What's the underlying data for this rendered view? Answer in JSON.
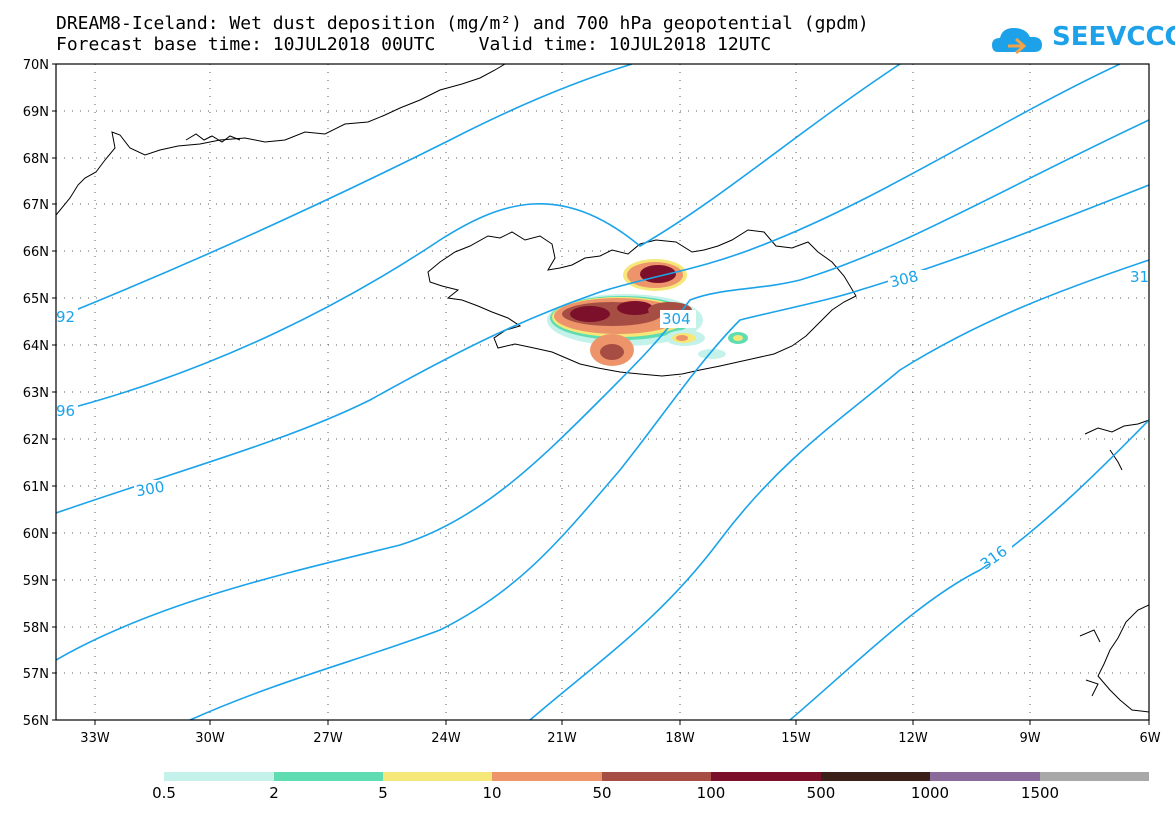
{
  "title": {
    "line1": "DREAM8-Iceland: Wet dust deposition (mg/m²) and 700 hPa geopotential (gpdm)",
    "line2": "Forecast base time: 10JUL2018 00UTC    Valid time: 10JUL2018 12UTC"
  },
  "logo": {
    "text": "SEEVCCC",
    "icon": "cloud-icon",
    "color": "#1da1e8"
  },
  "map": {
    "latitude_labels": [
      "70N",
      "69N",
      "68N",
      "67N",
      "66N",
      "65N",
      "64N",
      "63N",
      "62N",
      "61N",
      "60N",
      "59N",
      "58N",
      "57N",
      "56N"
    ],
    "longitude_labels": [
      "33W",
      "30W",
      "27W",
      "24W",
      "21W",
      "18W",
      "15W",
      "12W",
      "9W",
      "6W"
    ],
    "contour_color": "#1aa3ea",
    "contour_labels": [
      "92",
      "96",
      "300",
      "304",
      "308",
      "316",
      "31"
    ],
    "coastline_color": "#000000"
  },
  "legend": {
    "labels": [
      "0.5",
      "2",
      "5",
      "10",
      "50",
      "100",
      "500",
      "1000",
      "1500"
    ],
    "colors": [
      "#c4f2ea",
      "#5fdcb2",
      "#f5e878",
      "#ee946a",
      "#a64e44",
      "#7c0f2a",
      "#3a2018",
      "#8a6a9a",
      "#a8a8a8"
    ]
  }
}
